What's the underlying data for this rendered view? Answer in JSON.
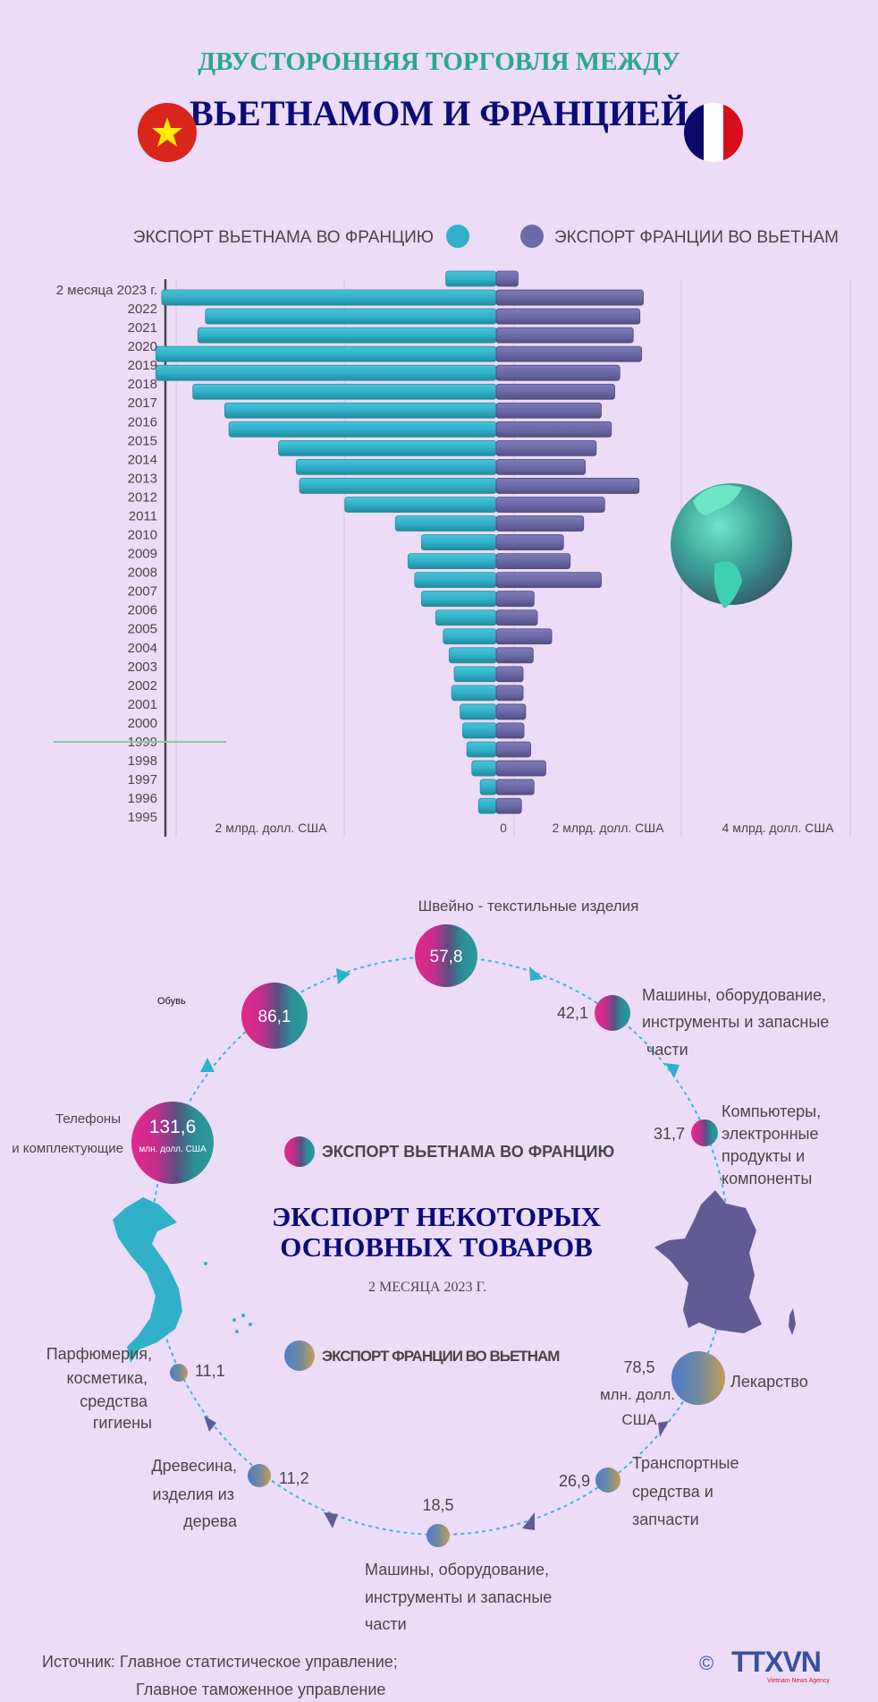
{
  "header": {
    "title_line1": "ДВУСТОРОННЯЯ ТОРГОВЛЯ МЕЖДУ",
    "title_line2": "ВЬЕТНАМОМ И ФРАНЦИЕЙ"
  },
  "colors": {
    "background": "#ecdcf8",
    "vn_export": "#31b1c9",
    "fr_export": "#6e6aa6",
    "title_teal": "#2aa88e",
    "title_navy": "#0d0a7a"
  },
  "chart_data": {
    "type": "bar",
    "orientation": "horizontal-diverging",
    "legend": "top",
    "categories": [
      "2 месяца 2023 г.",
      "2022",
      "2021",
      "2020",
      "2019",
      "2018",
      "2017",
      "2016",
      "2015",
      "2014",
      "2013",
      "2012",
      "2011",
      "2010",
      "2009",
      "2008",
      "2007",
      "2006",
      "2005",
      "2004",
      "2003",
      "2002",
      "2001",
      "2000",
      "1999",
      "1998",
      "1997",
      "1996",
      "1995"
    ],
    "series": [
      {
        "name": "ЭКСПОРТ ВЬЕТНАМА ВО ФРАНЦИЮ",
        "color": "#31b1c9",
        "values": [
          0.6,
          3.98,
          3.46,
          3.55,
          4.05,
          4.05,
          3.61,
          3.23,
          3.18,
          2.59,
          2.38,
          2.34,
          1.8,
          1.2,
          0.89,
          1.05,
          0.97,
          0.89,
          0.72,
          0.63,
          0.56,
          0.5,
          0.53,
          0.43,
          0.4,
          0.35,
          0.29,
          0.19,
          0.21
        ]
      },
      {
        "name": "ЭКСПОРТ ФРАНЦИИ ВО ВЬЕТНАМ",
        "color": "#6e6aa6",
        "values": [
          0.26,
          1.75,
          1.71,
          1.63,
          1.73,
          1.47,
          1.41,
          1.25,
          1.37,
          1.19,
          1.06,
          1.7,
          1.29,
          1.04,
          0.8,
          0.88,
          1.25,
          0.45,
          0.49,
          0.66,
          0.44,
          0.32,
          0.32,
          0.35,
          0.33,
          0.41,
          0.59,
          0.45,
          0.3
        ]
      }
    ],
    "unit": "млрд. долл. США",
    "tick_labels": [
      "2 млрд. долл. США",
      "0",
      "2 млрд. долл. США",
      "4 млрд. долл. США"
    ],
    "grid": true
  },
  "products": {
    "title_line1": "ЭКСПОРТ НЕКОТОРЫХ",
    "title_line2": "ОСНОВНЫХ ТОВАРОВ",
    "period": "2 МЕСЯЦА 2023 Г.",
    "unit_label": "млн. долл. США",
    "legend_vn": "ЭКСПОРТ ВЬЕТНАМА ВО ФРАНЦИЮ",
    "legend_fr": "ЭКСПОРТ ФРАНЦИИ ВО ВЬЕТНАМ",
    "vn_items": [
      {
        "value": "131,6",
        "label": [
          "Телефоны",
          "и комплектующие"
        ]
      },
      {
        "value": "86,1",
        "label": [
          "Обувь"
        ]
      },
      {
        "value": "57,8",
        "label": [
          "Швейно - текстильные изделия"
        ]
      },
      {
        "value": "42,1",
        "label": [
          "Машины, оборудование,",
          "инструменты и запасные",
          "части"
        ]
      },
      {
        "value": "31,7",
        "label": [
          "Компьютеры,",
          "электронные",
          "продукты и",
          "компоненты"
        ]
      }
    ],
    "fr_items": [
      {
        "value": "78,5",
        "unit": [
          "млн. долл.",
          "США"
        ],
        "label": [
          "Лекарство"
        ]
      },
      {
        "value": "26,9",
        "label": [
          "Транспортные",
          "средства и",
          "запчасти"
        ]
      },
      {
        "value": "18,5",
        "label": [
          "Машины, оборудование,",
          "инструменты и запасные",
          "части"
        ]
      },
      {
        "value": "11,2",
        "label": [
          "Древесина,",
          "изделия из",
          "дерева"
        ]
      },
      {
        "value": "11,1",
        "label": [
          "Парфюмерия,",
          "косметика,",
          "средства",
          "гигиены"
        ]
      }
    ]
  },
  "footer": {
    "source_line1": "Источник: Главное статистическое управление;",
    "source_line2": "Главное таможенное управление",
    "logo_text": "TTXVN",
    "logo_sub": "Vietnam News Agency",
    "copyright": "©"
  }
}
